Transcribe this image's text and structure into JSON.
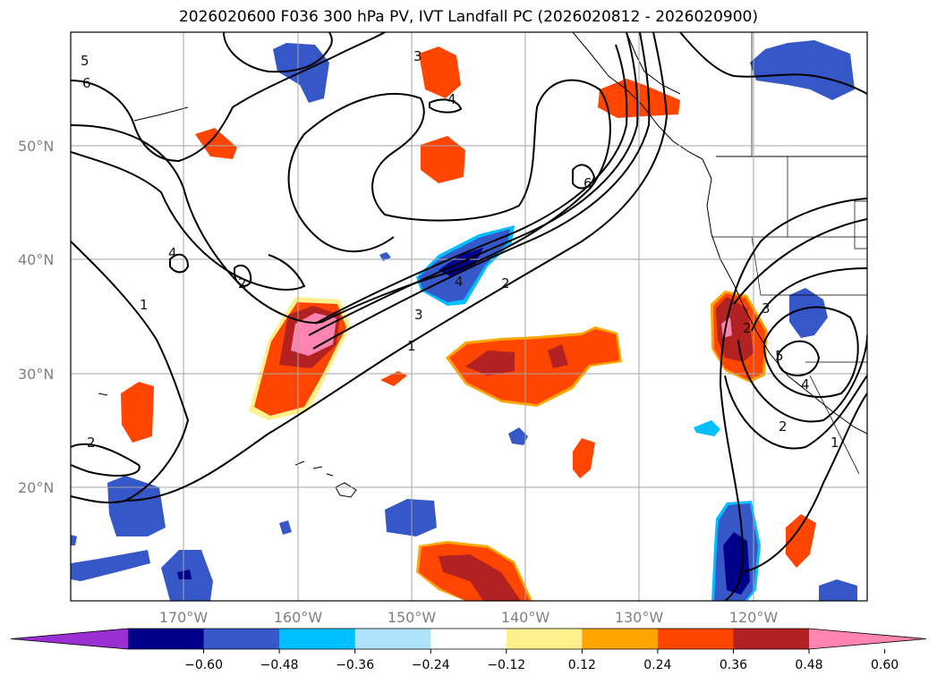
{
  "title": "2026020600 F036 300 hPa PV, IVT Landfall PC (2026020812 - 2026020900)",
  "lat_labels": [
    "50°N",
    "40°N",
    "30°N",
    "20°N"
  ],
  "lon_labels": [
    "170°W",
    "160°W",
    "150°W",
    "140°W",
    "130°W",
    "120°W"
  ],
  "contour_labels": [
    "1",
    "2",
    "3",
    "4",
    "5",
    "6",
    "1",
    "2",
    "3",
    "4",
    "4",
    "2",
    "2",
    "5",
    "4",
    "3",
    "2",
    "1",
    "6"
  ],
  "colorbar": {
    "ticks": [
      "−0.60",
      "−0.48",
      "−0.36",
      "−0.24",
      "−0.12",
      "0.12",
      "0.24",
      "0.36",
      "0.48",
      "0.60"
    ],
    "colors": [
      "#9a2fd2",
      "#00008b",
      "#3657c8",
      "#00bfff",
      "#ade2fa",
      "#ffffff",
      "#fff08e",
      "#ffa500",
      "#ff4500",
      "#b22222",
      "#ff85b0"
    ]
  }
}
